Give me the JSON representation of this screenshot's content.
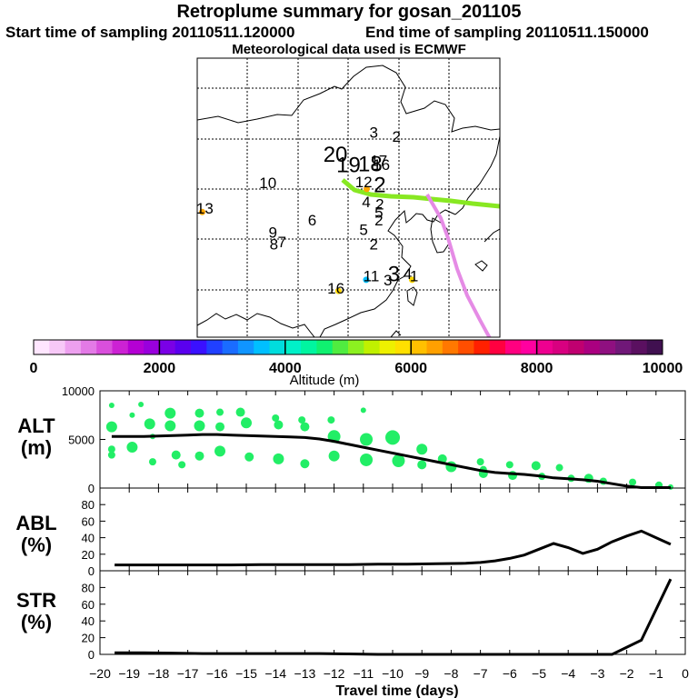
{
  "header": {
    "title": "Retroplume summary for gosan_201105",
    "start": "Start time of sampling 20110511.120000",
    "end": "End time of sampling 20110511.150000",
    "met": "Meteorological data used is ECMWF"
  },
  "map": {
    "labels": [
      {
        "text": "20",
        "lon": 117.4,
        "lat": 42.0,
        "big": true
      },
      {
        "text": "19",
        "lon": 120.0,
        "lat": 40.7,
        "big": true
      },
      {
        "text": "18",
        "lon": 124.3,
        "lat": 40.8,
        "big": true
      },
      {
        "text": "17",
        "lon": 126.0,
        "lat": 41.5,
        "big": false
      },
      {
        "text": "16",
        "lon": 126.5,
        "lat": 41.0,
        "big": false
      },
      {
        "text": "3",
        "lon": 125.0,
        "lat": 45.0,
        "big": false
      },
      {
        "text": "2",
        "lon": 129.5,
        "lat": 44.5,
        "big": false
      },
      {
        "text": "10",
        "lon": 104.0,
        "lat": 38.7,
        "big": false
      },
      {
        "text": "12",
        "lon": 123.0,
        "lat": 38.8,
        "big": false
      },
      {
        "text": "2",
        "lon": 126.2,
        "lat": 38.2,
        "big": true
      },
      {
        "text": "4",
        "lon": 123.5,
        "lat": 36.3,
        "big": false
      },
      {
        "text": "2",
        "lon": 126.2,
        "lat": 36.0,
        "big": false
      },
      {
        "text": "5",
        "lon": 126.0,
        "lat": 35.0,
        "big": false
      },
      {
        "text": "2",
        "lon": 126.0,
        "lat": 34.0,
        "big": false
      },
      {
        "text": "6",
        "lon": 112.8,
        "lat": 34.0,
        "big": false
      },
      {
        "text": "5",
        "lon": 123.0,
        "lat": 32.8,
        "big": false
      },
      {
        "text": "13",
        "lon": 91.5,
        "lat": 35.5,
        "big": false
      },
      {
        "text": "9",
        "lon": 105.0,
        "lat": 32.5,
        "big": false
      },
      {
        "text": "8",
        "lon": 105.2,
        "lat": 31.0,
        "big": false
      },
      {
        "text": "7",
        "lon": 106.8,
        "lat": 31.3,
        "big": false
      },
      {
        "text": "2",
        "lon": 125.0,
        "lat": 31.0,
        "big": false
      },
      {
        "text": "11",
        "lon": 124.5,
        "lat": 27.0,
        "big": false
      },
      {
        "text": "16",
        "lon": 117.5,
        "lat": 25.5,
        "big": false
      },
      {
        "text": "3",
        "lon": 127.8,
        "lat": 26.5,
        "big": false
      },
      {
        "text": "3",
        "lon": 129.0,
        "lat": 27.0,
        "big": true
      },
      {
        "text": "4",
        "lon": 131.7,
        "lat": 27.3,
        "big": false
      },
      {
        "text": "1",
        "lon": 133.0,
        "lat": 27.0,
        "big": false
      }
    ],
    "markers": [
      {
        "lon": 91.0,
        "lat": 35.7,
        "color": "#ffa500"
      },
      {
        "lon": 123.6,
        "lat": 38.6,
        "color": "#ffa500"
      },
      {
        "lon": 118.0,
        "lat": 25.8,
        "color": "#ffd700"
      },
      {
        "lon": 132.6,
        "lat": 27.2,
        "color": "#ffd700"
      },
      {
        "lon": 123.5,
        "lat": 27.2,
        "color": "#00bfff"
      }
    ]
  },
  "colorbar": {
    "min": 0,
    "max": 10000,
    "tick_labels": [
      "0",
      "2000",
      "4000",
      "6000",
      "8000",
      "10000"
    ],
    "label": "Altitude (m)",
    "colors": [
      "#ffe6ff",
      "#f7c8f7",
      "#eda0ef",
      "#e37ae6",
      "#d94fdc",
      "#cc22d4",
      "#b400d4",
      "#9900dd",
      "#7a00e6",
      "#5a00ee",
      "#3a10ff",
      "#2040ff",
      "#1a6cff",
      "#1095ff",
      "#00bfff",
      "#00dddd",
      "#00f0c8",
      "#00f5a0",
      "#10f070",
      "#50ec40",
      "#8cf020",
      "#c0f000",
      "#eef000",
      "#ffe000",
      "#ffc000",
      "#ffa000",
      "#ff7800",
      "#ff4e00",
      "#ff2000",
      "#ff0040",
      "#ff0080",
      "#ff00a0",
      "#ee0090",
      "#d80080",
      "#c00070",
      "#aa0080",
      "#8f1080",
      "#701878",
      "#5a1060",
      "#401050"
    ]
  },
  "chart_data": [
    {
      "type": "scatter+line",
      "panel": "ALT",
      "ylabel": "ALT",
      "yunit": "(m)",
      "ylim": [
        0,
        10000
      ],
      "y_ticks": [
        "10000",
        "5000",
        "0"
      ],
      "x": [
        -19.6,
        -19.0,
        -18.5,
        -18.0,
        -17.5,
        -17.0,
        -16.5,
        -16.0,
        -15.5,
        -15.0,
        -14.5,
        -14.0,
        -13.5,
        -13.0,
        -12.5,
        -12.0,
        -11.5,
        -11.0,
        -10.5,
        -10.0,
        -9.5,
        -9.0,
        -8.5,
        -8.0,
        -7.5,
        -7.0,
        -6.5,
        -6.0,
        -5.5,
        -5.0,
        -4.5,
        -4.0,
        -3.5,
        -3.0,
        -2.5,
        -2.0,
        -1.5,
        -1.0,
        -0.5
      ],
      "mean_altitude": [
        5300,
        5300,
        5300,
        5350,
        5400,
        5450,
        5500,
        5500,
        5450,
        5400,
        5350,
        5300,
        5250,
        5200,
        5050,
        4800,
        4500,
        4200,
        3900,
        3600,
        3300,
        3000,
        2700,
        2400,
        2100,
        1800,
        1600,
        1500,
        1400,
        1250,
        1050,
        950,
        850,
        700,
        450,
        200,
        50,
        50,
        50
      ],
      "points": [
        {
          "x": -19.6,
          "y": 8500,
          "s": 3
        },
        {
          "x": -19.6,
          "y": 6300,
          "s": 6
        },
        {
          "x": -19.6,
          "y": 4000,
          "s": 4
        },
        {
          "x": -19.6,
          "y": 3400,
          "s": 4
        },
        {
          "x": -18.9,
          "y": 7500,
          "s": 3
        },
        {
          "x": -18.9,
          "y": 4200,
          "s": 6
        },
        {
          "x": -18.6,
          "y": 8600,
          "s": 3
        },
        {
          "x": -18.3,
          "y": 6600,
          "s": 6
        },
        {
          "x": -18.2,
          "y": 2700,
          "s": 4
        },
        {
          "x": -18.2,
          "y": 5300,
          "s": 3
        },
        {
          "x": -17.6,
          "y": 7700,
          "s": 6
        },
        {
          "x": -17.6,
          "y": 6400,
          "s": 6
        },
        {
          "x": -17.4,
          "y": 3400,
          "s": 5
        },
        {
          "x": -17.2,
          "y": 2400,
          "s": 4
        },
        {
          "x": -16.6,
          "y": 7700,
          "s": 5
        },
        {
          "x": -16.6,
          "y": 6400,
          "s": 6
        },
        {
          "x": -16.6,
          "y": 3300,
          "s": 5
        },
        {
          "x": -15.9,
          "y": 7800,
          "s": 4
        },
        {
          "x": -15.9,
          "y": 6300,
          "s": 5
        },
        {
          "x": -15.9,
          "y": 3800,
          "s": 6
        },
        {
          "x": -15.2,
          "y": 7800,
          "s": 5
        },
        {
          "x": -15.0,
          "y": 6700,
          "s": 6
        },
        {
          "x": -14.9,
          "y": 3200,
          "s": 5
        },
        {
          "x": -14.0,
          "y": 7200,
          "s": 4
        },
        {
          "x": -13.9,
          "y": 6500,
          "s": 5
        },
        {
          "x": -13.9,
          "y": 3000,
          "s": 6
        },
        {
          "x": -13.1,
          "y": 7000,
          "s": 4
        },
        {
          "x": -13.0,
          "y": 6300,
          "s": 5
        },
        {
          "x": -13.0,
          "y": 2500,
          "s": 5
        },
        {
          "x": -12.1,
          "y": 7000,
          "s": 4
        },
        {
          "x": -12.0,
          "y": 5300,
          "s": 7
        },
        {
          "x": -12.0,
          "y": 3300,
          "s": 6
        },
        {
          "x": -11.0,
          "y": 8000,
          "s": 3
        },
        {
          "x": -10.9,
          "y": 5000,
          "s": 7
        },
        {
          "x": -10.9,
          "y": 2900,
          "s": 7
        },
        {
          "x": -10.0,
          "y": 5200,
          "s": 8
        },
        {
          "x": -9.8,
          "y": 2800,
          "s": 7
        },
        {
          "x": -9.0,
          "y": 4000,
          "s": 6
        },
        {
          "x": -9.0,
          "y": 2400,
          "s": 5
        },
        {
          "x": -8.3,
          "y": 3000,
          "s": 5
        },
        {
          "x": -8.0,
          "y": 2200,
          "s": 6
        },
        {
          "x": -7.0,
          "y": 2700,
          "s": 4
        },
        {
          "x": -6.9,
          "y": 1900,
          "s": 4
        },
        {
          "x": -6.9,
          "y": 1500,
          "s": 5
        },
        {
          "x": -6.0,
          "y": 2400,
          "s": 4
        },
        {
          "x": -5.9,
          "y": 1300,
          "s": 5
        },
        {
          "x": -5.1,
          "y": 2300,
          "s": 5
        },
        {
          "x": -4.9,
          "y": 1200,
          "s": 4
        },
        {
          "x": -4.3,
          "y": 2100,
          "s": 4
        },
        {
          "x": -3.9,
          "y": 1000,
          "s": 4
        },
        {
          "x": -3.3,
          "y": 1000,
          "s": 5
        },
        {
          "x": -2.8,
          "y": 700,
          "s": 4
        },
        {
          "x": -1.8,
          "y": 600,
          "s": 4
        },
        {
          "x": -0.9,
          "y": 300,
          "s": 4
        },
        {
          "x": -0.5,
          "y": 100,
          "s": 3
        }
      ]
    },
    {
      "type": "line",
      "panel": "ABL",
      "ylabel": "ABL",
      "yunit": "(%)",
      "ylim": [
        0,
        100
      ],
      "y_ticks": [
        "80",
        "60",
        "40",
        "20",
        "0"
      ],
      "x": [
        -19.5,
        -18.5,
        -17.5,
        -16.5,
        -15.5,
        -14.5,
        -13.5,
        -12.5,
        -11.5,
        -10.5,
        -9.5,
        -8.5,
        -7.5,
        -7.0,
        -6.5,
        -6.0,
        -5.5,
        -5.0,
        -4.5,
        -4.0,
        -3.5,
        -3.0,
        -2.5,
        -2.0,
        -1.5,
        -1.0,
        -0.5
      ],
      "values": [
        7,
        7,
        7,
        7,
        7,
        7.5,
        7.5,
        7.5,
        7.5,
        8,
        8,
        8.5,
        9,
        10,
        12,
        15,
        19,
        26,
        33,
        28,
        21,
        26,
        35,
        42,
        48,
        40,
        32
      ]
    },
    {
      "type": "line",
      "panel": "STR",
      "ylabel": "STR",
      "yunit": "(%)",
      "ylim": [
        0,
        100
      ],
      "y_ticks": [
        "80",
        "60",
        "40",
        "20",
        "0"
      ],
      "x": [
        -19.5,
        -18.5,
        -17.5,
        -16.5,
        -15.5,
        -14.5,
        -13.5,
        -12.5,
        -11.5,
        -10.5,
        -9.5,
        -8.5,
        -7.5,
        -6.5,
        -5.5,
        -4.5,
        -3.5,
        -2.5,
        -1.5,
        -0.5
      ],
      "values": [
        2,
        2,
        1.5,
        1,
        1,
        1,
        1,
        1,
        0.5,
        0,
        0,
        0,
        0,
        0,
        0,
        0,
        0,
        0,
        17,
        90
      ]
    }
  ],
  "x_axis": {
    "label": "Travel time (days)",
    "min": -20,
    "max": 0,
    "tick_labels": [
      "−20",
      "−19",
      "−18",
      "−17",
      "−16",
      "−15",
      "−14",
      "−13",
      "−12",
      "−11",
      "−10",
      "−9",
      "−8",
      "−7",
      "−6",
      "−5",
      "−4",
      "−3",
      "−2",
      "−1",
      "0"
    ]
  },
  "colors": {
    "alt_points": "#22ee66",
    "green_trajectory": "#88e822",
    "violet_trajectory": "#e58be5",
    "line": "#000000"
  }
}
